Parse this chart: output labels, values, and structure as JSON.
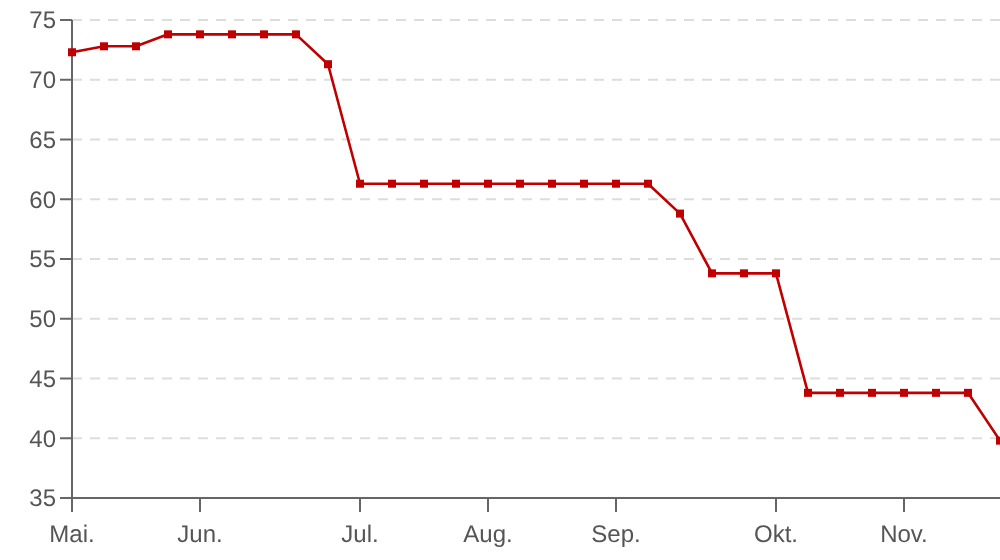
{
  "chart_data": {
    "type": "line",
    "categories": [
      "Mai.",
      null,
      null,
      null,
      "Jun.",
      null,
      null,
      null,
      null,
      "Jul.",
      null,
      null,
      null,
      "Aug.",
      null,
      null,
      null,
      "Sep.",
      null,
      null,
      null,
      null,
      "Okt.",
      null,
      null,
      null,
      "Nov.",
      null,
      null,
      null
    ],
    "series": [
      {
        "color": "#c00000",
        "values": [
          72.3,
          72.8,
          72.8,
          73.8,
          73.8,
          73.8,
          73.8,
          73.8,
          71.3,
          61.3,
          61.3,
          61.3,
          61.3,
          61.3,
          61.3,
          61.3,
          61.3,
          61.3,
          61.3,
          58.8,
          53.8,
          53.8,
          53.8,
          43.8,
          43.8,
          43.8,
          43.8,
          43.8,
          43.8,
          39.8
        ]
      }
    ],
    "ylim": [
      35,
      75
    ],
    "yticks": [
      35,
      40,
      45,
      50,
      55,
      60,
      65,
      70,
      75
    ],
    "grid": "y",
    "marker": "square",
    "line_style": "solid"
  }
}
